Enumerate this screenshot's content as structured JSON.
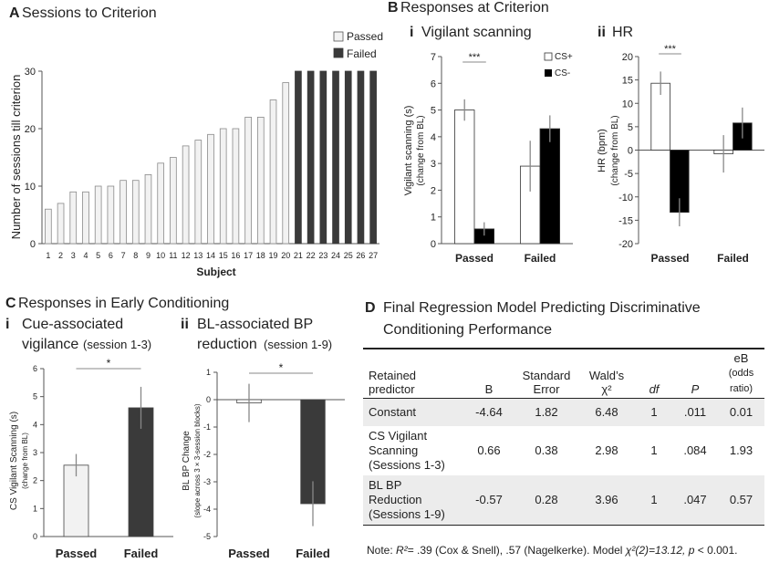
{
  "panelA": {
    "letter": "A",
    "title": "Sessions to Criterion",
    "ylabel": "Number of sessions till criterion",
    "xlabel": "Subject",
    "legend_passed": "Passed",
    "legend_failed": "Failed",
    "passed_color": "#f2f2f2",
    "failed_color": "#3a3a3a"
  },
  "panelB": {
    "letter": "B",
    "title": "Responses at Criterion",
    "sub_i_num": "i",
    "sub_i_title": "Vigilant scanning",
    "sub_ii_num": "ii",
    "sub_ii_title": "HR",
    "legend_csplus": "CS+",
    "legend_csminus": "CS-",
    "vs_ylabel": "Vigilant scanning (s)",
    "vs_ylabel2": "(change from BL)",
    "hr_ylabel": "HR (bpm)",
    "hr_ylabel2": "(change from BL)",
    "sig_vs": "***",
    "sig_hr": "***"
  },
  "panelC": {
    "letter": "C",
    "title": "Responses in Early Conditioning",
    "sub_i_num": "i",
    "sub_i_line1": "Cue-associated",
    "sub_i_line2": "vigilance",
    "sub_i_sess": "(session 1-3)",
    "sub_ii_num": "ii",
    "sub_ii_line1": "BL-associated BP",
    "sub_ii_line2": "reduction",
    "sub_ii_sess": "(session 1-9)",
    "cv_ylabel": "CS Vigilant Scanning (s)",
    "cv_ylabel2": "(change from BL)",
    "bp_ylabel": "BL BP Change",
    "bp_ylabel2": "(slope across 3 × 3-session blocks)",
    "sig_cv": "*",
    "sig_bp": "*"
  },
  "panelD": {
    "letter": "D",
    "title_line1": "Final Regression Model Predicting Discriminative",
    "title_line2": "Conditioning Performance",
    "headers": {
      "predictor1": "Retained",
      "predictor2": "predictor",
      "b": "B",
      "se1": "Standard",
      "se2": "Error",
      "wald1": "Wald’s",
      "wald2": "χ²",
      "df": "df",
      "p": "P",
      "eb1": "eB",
      "eb2": "(odds ratio)"
    },
    "rows": [
      {
        "name1": "Constant",
        "name2": "",
        "name3": "",
        "b": "-4.64",
        "se": "1.82",
        "wald": "6.48",
        "df": "1",
        "p": ".011",
        "eb": "0.01"
      },
      {
        "name1": "CS Vigilant",
        "name2": "Scanning",
        "name3": "(Sessions 1-3)",
        "b": "0.66",
        "se": "0.38",
        "wald": "2.98",
        "df": "1",
        "p": ".084",
        "eb": "1.93"
      },
      {
        "name1": "BL BP",
        "name2": "Reduction",
        "name3": "(Sessions 1-9)",
        "b": "-0.57",
        "se": "0.28",
        "wald": "3.96",
        "df": "1",
        "p": ".047",
        "eb": "0.57"
      }
    ],
    "note_prefix": "Note: ",
    "note_r2": "R²",
    "note_mid": "= .39 (Cox & Snell), .57 (Nagelkerke). Model ",
    "note_chi": "χ²(2)=13.12, ",
    "note_p": "p",
    "note_end": " < 0.001."
  },
  "chart_data": [
    {
      "id": "A",
      "type": "bar",
      "title": "Sessions to Criterion",
      "xlabel": "Subject",
      "ylabel": "Number of sessions till criterion",
      "ylim": [
        0,
        30
      ],
      "yticks": [
        0,
        10,
        20,
        30
      ],
      "categories": [
        "1",
        "2",
        "3",
        "4",
        "5",
        "6",
        "7",
        "8",
        "9",
        "10",
        "11",
        "12",
        "13",
        "14",
        "15",
        "16",
        "17",
        "18",
        "19",
        "20",
        "21",
        "22",
        "23",
        "24",
        "25",
        "26",
        "27"
      ],
      "values": [
        6,
        7,
        9,
        9,
        10,
        10,
        11,
        11,
        12,
        14,
        15,
        17,
        18,
        19,
        20,
        20,
        22,
        22,
        25,
        28,
        30,
        30,
        30,
        30,
        30,
        30,
        30
      ],
      "group": [
        "Passed",
        "Passed",
        "Passed",
        "Passed",
        "Passed",
        "Passed",
        "Passed",
        "Passed",
        "Passed",
        "Passed",
        "Passed",
        "Passed",
        "Passed",
        "Passed",
        "Passed",
        "Passed",
        "Passed",
        "Passed",
        "Passed",
        "Passed",
        "Failed",
        "Failed",
        "Failed",
        "Failed",
        "Failed",
        "Failed",
        "Failed"
      ]
    },
    {
      "id": "B-i",
      "type": "bar",
      "title": "Vigilant scanning",
      "ylabel": "Vigilant scanning (s) (change from BL)",
      "ylim": [
        0,
        7
      ],
      "yticks": [
        0,
        1,
        2,
        3,
        4,
        5,
        6,
        7
      ],
      "categories": [
        "Passed",
        "Failed"
      ],
      "series": [
        {
          "name": "CS+",
          "values": [
            5.0,
            2.9
          ],
          "errors": [
            0.4,
            0.95
          ]
        },
        {
          "name": "CS-",
          "values": [
            0.55,
            4.3
          ],
          "errors": [
            0.25,
            0.5
          ]
        }
      ]
    },
    {
      "id": "B-ii",
      "type": "bar",
      "title": "HR",
      "ylabel": "HR (bpm) (change from BL)",
      "ylim": [
        -20,
        20
      ],
      "yticks": [
        -20,
        -15,
        -10,
        -5,
        0,
        5,
        10,
        15,
        20
      ],
      "categories": [
        "Passed",
        "Failed"
      ],
      "series": [
        {
          "name": "CS+",
          "values": [
            14.3,
            -0.8
          ],
          "errors": [
            2.5,
            4.0
          ]
        },
        {
          "name": "CS-",
          "values": [
            -13.3,
            5.8
          ],
          "errors": [
            3.0,
            3.3
          ]
        }
      ]
    },
    {
      "id": "C-i",
      "type": "bar",
      "title": "Cue-associated vigilance (session 1-3)",
      "ylabel": "CS Vigilant Scanning (s) (change from BL)",
      "ylim": [
        0,
        6
      ],
      "yticks": [
        0,
        1,
        2,
        3,
        4,
        5,
        6
      ],
      "categories": [
        "Passed",
        "Failed"
      ],
      "values": [
        2.55,
        4.6
      ],
      "errors": [
        0.4,
        0.75
      ]
    },
    {
      "id": "C-ii",
      "type": "bar",
      "title": "BL-associated BP reduction (session 1-9)",
      "ylabel": "BL BP Change (slope across 3 × 3-session blocks)",
      "ylim": [
        -5,
        1
      ],
      "yticks": [
        -5,
        -4,
        -3,
        -2,
        -1,
        0,
        1
      ],
      "categories": [
        "Passed",
        "Failed"
      ],
      "values": [
        -0.12,
        -3.8
      ],
      "errors": [
        0.7,
        0.82
      ]
    }
  ]
}
